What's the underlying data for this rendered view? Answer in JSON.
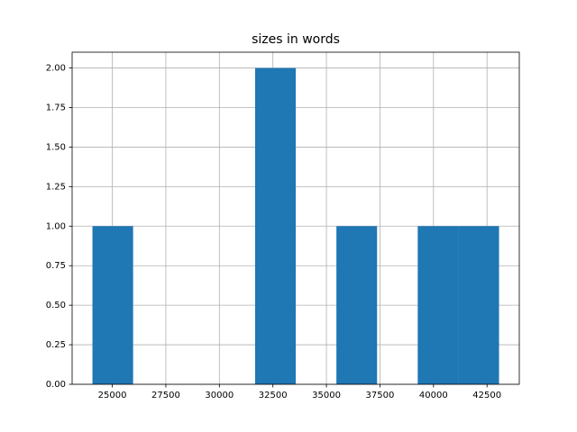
{
  "chart_data": {
    "type": "histogram",
    "title": "sizes in words",
    "bins": [
      24072,
      25971,
      27870,
      29769,
      31668,
      33567,
      35466,
      37365,
      39264,
      41163,
      43062
    ],
    "counts": [
      1,
      0,
      0,
      0,
      2,
      0,
      1,
      0,
      1,
      1
    ],
    "color": "#1f77b4",
    "xlim": [
      23123,
      44008
    ],
    "xticks": [
      25000,
      27500,
      30000,
      32500,
      35000,
      37500,
      40000,
      42500
    ],
    "ylim": [
      0,
      2.1
    ],
    "yticks": [
      {
        "value": 0,
        "label": "0.00"
      },
      {
        "value": 0.25,
        "label": "0.25"
      },
      {
        "value": 0.5,
        "label": "0.50"
      },
      {
        "value": 0.75,
        "label": "0.75"
      },
      {
        "value": 1,
        "label": "1.00"
      },
      {
        "value": 1.25,
        "label": "1.25"
      },
      {
        "value": 1.5,
        "label": "1.50"
      },
      {
        "value": 1.75,
        "label": "1.75"
      },
      {
        "value": 2,
        "label": "2.00"
      }
    ],
    "grid": true
  }
}
